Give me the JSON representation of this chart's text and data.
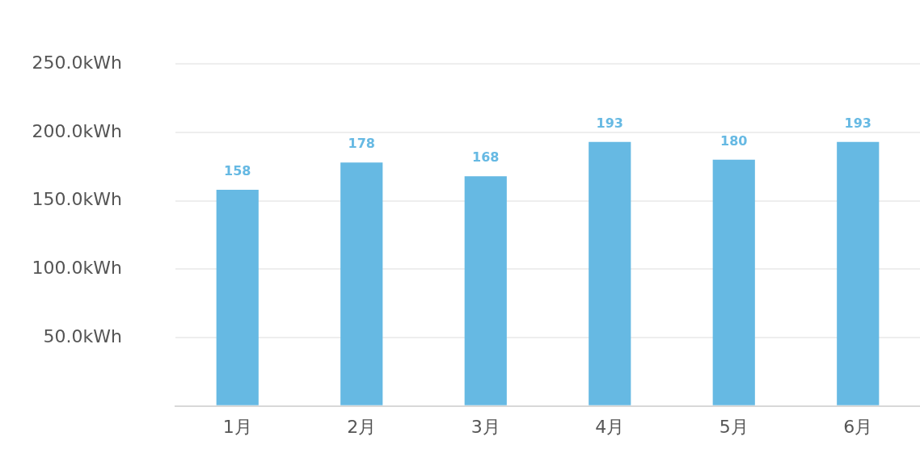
{
  "chart_data": {
    "type": "bar",
    "categories": [
      "1月",
      "2月",
      "3月",
      "4月",
      "5月",
      "6月"
    ],
    "values": [
      158,
      178,
      168,
      193,
      180,
      193
    ],
    "color": "#66b9e3",
    "ylim": [
      0,
      250
    ],
    "yticks": [
      {
        "value": 0,
        "label": null
      },
      {
        "value": 50,
        "label": "50.0kWh"
      },
      {
        "value": 100,
        "label": "100.0kWh"
      },
      {
        "value": 150,
        "label": "150.0kWh"
      },
      {
        "value": 200,
        "label": "200.0kWh"
      },
      {
        "value": 250,
        "label": "250.0kWh"
      }
    ],
    "grid": "y",
    "data_labels": true,
    "legend": false
  }
}
